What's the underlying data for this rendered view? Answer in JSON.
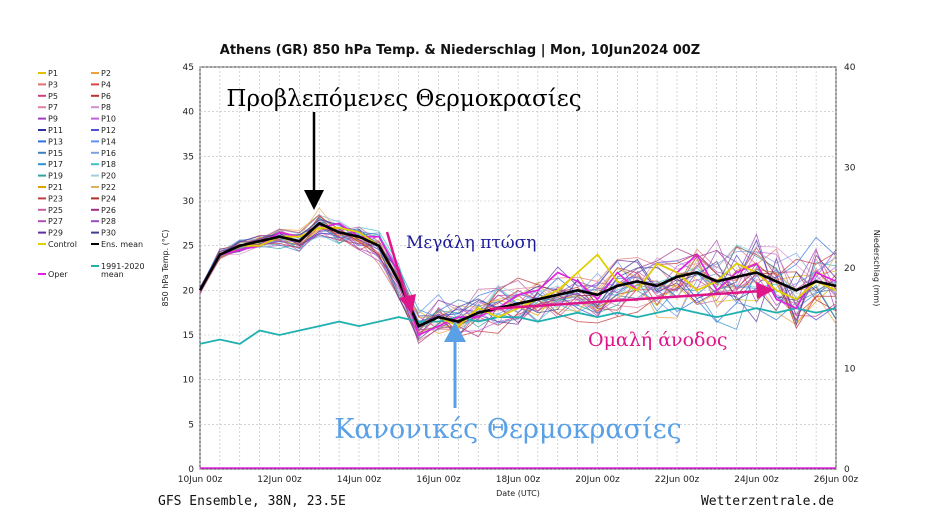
{
  "chart_data": {
    "type": "line",
    "title": "Athens  (GR)  850 hPa Temp. & Niederschlag | Mon, 10Jun2024 00Z",
    "ylabel": "850 hPa Temp. (°C)",
    "ylabel_right": "Niederschlag (mm)",
    "xlabel": "Date (UTC)",
    "ylim": [
      0,
      45
    ],
    "ylim_right": [
      0,
      40
    ],
    "y_ticks": [
      0,
      5,
      10,
      15,
      20,
      25,
      30,
      35,
      40,
      45
    ],
    "y_ticks_right": [
      0,
      10,
      20,
      30,
      40
    ],
    "x_tick_labels": [
      "10Jun 00z",
      "12Jun 00z",
      "14Jun 00z",
      "16Jun 00z",
      "18Jun 00z",
      "20Jun 00z",
      "22Jun 00z",
      "24Jun 00z",
      "26Jun 00z"
    ],
    "grid": true,
    "legend_position": "left",
    "x_days": [
      0,
      0.5,
      1,
      1.5,
      2,
      2.5,
      3,
      3.5,
      4,
      4.5,
      5,
      5.5,
      6,
      6.5,
      7,
      7.5,
      8,
      8.5,
      9,
      9.5,
      10,
      10.5,
      11,
      11.5,
      12,
      12.5,
      13,
      13.5,
      14,
      14.5,
      15,
      15.5,
      16
    ],
    "series": [
      {
        "name": "Ens. mean",
        "color": "#000000",
        "values": [
          20,
          24,
          25,
          25.5,
          26,
          25.5,
          27.5,
          26.5,
          26,
          25,
          21,
          16,
          17,
          16.5,
          17.5,
          18,
          18.5,
          19,
          19.5,
          20,
          19.5,
          20.5,
          21,
          20.5,
          21.5,
          22,
          21,
          21.5,
          22,
          21,
          20,
          21,
          20.5
        ]
      },
      {
        "name": "Oper",
        "color": "#e020e0",
        "values": [
          20,
          24,
          24.5,
          25,
          26.5,
          26,
          27,
          27.5,
          26,
          26,
          22,
          15,
          16,
          17,
          17,
          18,
          19.5,
          20,
          22,
          21,
          19,
          22,
          20,
          23,
          22,
          24,
          20,
          22,
          23,
          19,
          18,
          22,
          21
        ]
      },
      {
        "name": "Control",
        "color": "#e0d000",
        "values": [
          20,
          24,
          25,
          25,
          26,
          26,
          27,
          27,
          26.5,
          25,
          21,
          16,
          17,
          16,
          18,
          17,
          18,
          19,
          20,
          22,
          24,
          21,
          20,
          23,
          22,
          20,
          21,
          23,
          22,
          20,
          19,
          21,
          20
        ]
      },
      {
        "name": "1991-2020 mean",
        "color": "#20b0b0",
        "values": [
          14,
          14.5,
          14,
          15.5,
          15,
          15.5,
          16,
          16.5,
          16,
          16.5,
          17,
          16.5,
          16.5,
          17,
          16.5,
          17,
          17,
          16.5,
          17,
          17.5,
          17,
          17.5,
          17,
          17.5,
          18,
          17.5,
          17,
          17.5,
          18,
          17.5,
          18,
          17.5,
          18
        ]
      }
    ],
    "legend_members": [
      "P1",
      "P2",
      "P3",
      "P4",
      "P5",
      "P6",
      "P7",
      "P8",
      "P9",
      "P10",
      "P11",
      "P12",
      "P13",
      "P14",
      "P15",
      "P16",
      "P17",
      "P18",
      "P19",
      "P20",
      "P21",
      "P22",
      "P23",
      "P24",
      "P25",
      "P26",
      "P27",
      "P28",
      "P29",
      "P30"
    ],
    "legend_member_colors": [
      "#e0c000",
      "#f0a040",
      "#e07070",
      "#e04040",
      "#d04080",
      "#c03030",
      "#e080a0",
      "#d090d0",
      "#a040c0",
      "#c060e0",
      "#3030a0",
      "#5050d0",
      "#3070e0",
      "#6090f0",
      "#4080c0",
      "#80a0e0",
      "#3090d0",
      "#40c0c0",
      "#30a0a0",
      "#a0d0e0",
      "#e0a000",
      "#e0b060",
      "#c04040",
      "#b03030",
      "#c060a0",
      "#a03080",
      "#b050b0",
      "#9050c0",
      "#6030a0",
      "#404090"
    ],
    "legend_extra": [
      "Control",
      "Ens. mean",
      "1991-2020",
      "mean",
      "Oper"
    ],
    "annotations": {
      "forecast": "Προβλεπόμενες Θερμοκρασίες",
      "drop": "Μεγάλη πτώση",
      "rise": "Ομαλή άνοδος",
      "normal": "Κανονικές Θερμοκρασίες"
    }
  },
  "footer": {
    "left": "GFS Ensemble, 38N, 23.5E",
    "right": "Wetterzentrale.de"
  }
}
